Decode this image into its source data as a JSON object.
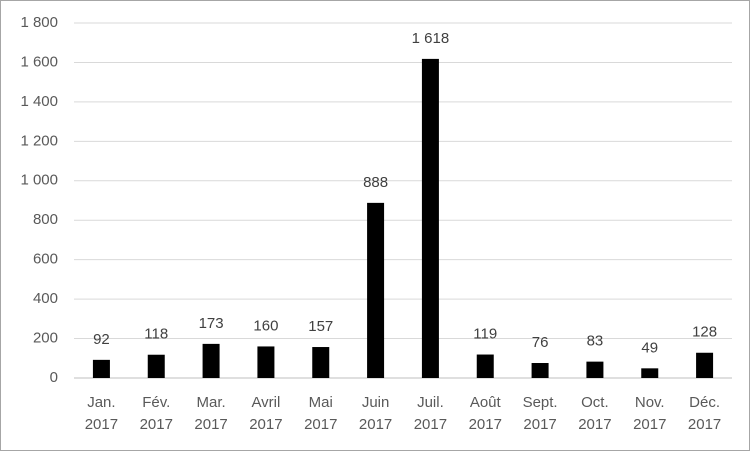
{
  "chart_data": {
    "type": "bar",
    "categories": [
      "Jan. 2017",
      "Fév. 2017",
      "Mar. 2017",
      "Avril 2017",
      "Mai 2017",
      "Juin 2017",
      "Juil. 2017",
      "Août 2017",
      "Sept. 2017",
      "Oct. 2017",
      "Nov. 2017",
      "Déc. 2017"
    ],
    "values": [
      92,
      118,
      173,
      160,
      157,
      888,
      1618,
      119,
      76,
      83,
      49,
      128
    ],
    "value_labels": [
      "92",
      "118",
      "173",
      "160",
      "157",
      "888",
      "1 618",
      "119",
      "76",
      "83",
      "49",
      "128"
    ],
    "color": "#000000",
    "ylim": [
      0,
      1800
    ],
    "yticks": [
      0,
      200,
      400,
      600,
      800,
      {
        "value": 1000,
        "label": "1 000"
      },
      {
        "value": 1200,
        "label": "1 200"
      },
      {
        "value": 1400,
        "label": "1 400"
      },
      {
        "value": 1600,
        "label": "1 600"
      },
      {
        "value": 1800,
        "label": "1 800"
      }
    ],
    "grid": true
  }
}
